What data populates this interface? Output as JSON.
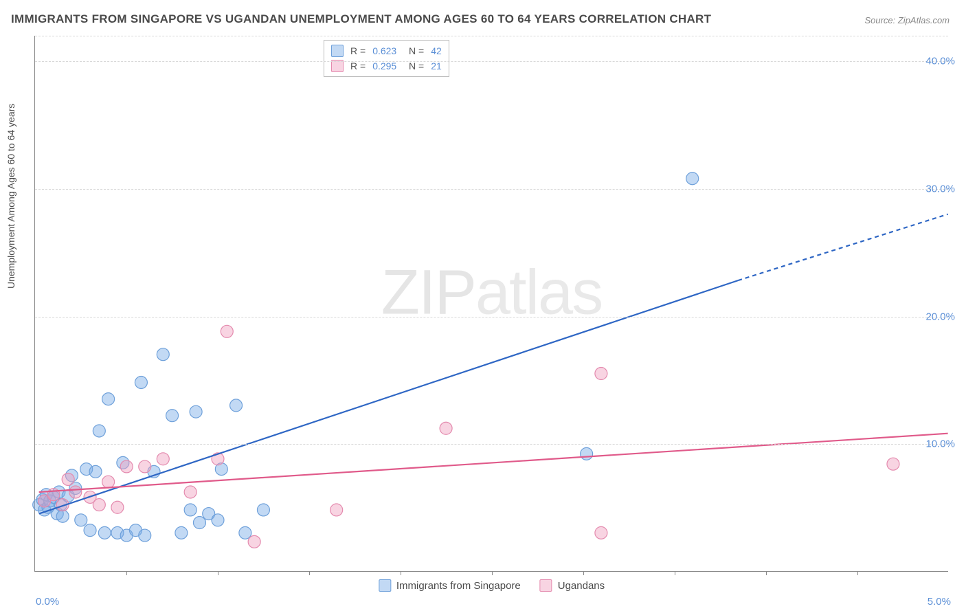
{
  "title": "IMMIGRANTS FROM SINGAPORE VS UGANDAN UNEMPLOYMENT AMONG AGES 60 TO 64 YEARS CORRELATION CHART",
  "source": "Source: ZipAtlas.com",
  "watermark_a": "ZIP",
  "watermark_b": "atlas",
  "y_axis_label": "Unemployment Among Ages 60 to 64 years",
  "chart": {
    "type": "scatter",
    "xlim": [
      0.0,
      5.0
    ],
    "ylim": [
      0.0,
      42.0
    ],
    "x_ticks": [
      "0.0%",
      "5.0%"
    ],
    "y_ticks": [
      {
        "v": 10.0,
        "label": "10.0%"
      },
      {
        "v": 20.0,
        "label": "20.0%"
      },
      {
        "v": 30.0,
        "label": "30.0%"
      },
      {
        "v": 40.0,
        "label": "40.0%"
      }
    ],
    "x_minor_ticks": [
      0.5,
      1.0,
      1.5,
      2.0,
      2.5,
      3.0,
      3.5,
      4.0,
      4.5
    ],
    "background_color": "#ffffff",
    "grid_color": "#d8d8d8",
    "marker_radius": 9,
    "marker_opacity": 0.45,
    "series": [
      {
        "name": "Immigrants from Singapore",
        "color": "#6ea0da",
        "fill": "rgba(120,170,230,0.45)",
        "line_color": "#2e66c4",
        "line_width": 2.2,
        "R": "0.623",
        "N": "42",
        "trend": {
          "x1": 0.02,
          "y1": 4.5,
          "x2": 3.85,
          "y2": 22.8,
          "dash_to_x": 5.0,
          "dash_to_y": 28.0
        },
        "points": [
          [
            0.02,
            5.2
          ],
          [
            0.04,
            5.6
          ],
          [
            0.05,
            4.8
          ],
          [
            0.06,
            6.0
          ],
          [
            0.07,
            5.0
          ],
          [
            0.08,
            5.5
          ],
          [
            0.1,
            5.8
          ],
          [
            0.12,
            4.5
          ],
          [
            0.13,
            6.2
          ],
          [
            0.14,
            5.2
          ],
          [
            0.15,
            4.3
          ],
          [
            0.18,
            5.9
          ],
          [
            0.2,
            7.5
          ],
          [
            0.22,
            6.5
          ],
          [
            0.25,
            4.0
          ],
          [
            0.28,
            8.0
          ],
          [
            0.3,
            3.2
          ],
          [
            0.33,
            7.8
          ],
          [
            0.35,
            11.0
          ],
          [
            0.38,
            3.0
          ],
          [
            0.4,
            13.5
          ],
          [
            0.45,
            3.0
          ],
          [
            0.48,
            8.5
          ],
          [
            0.5,
            2.8
          ],
          [
            0.55,
            3.2
          ],
          [
            0.58,
            14.8
          ],
          [
            0.6,
            2.8
          ],
          [
            0.65,
            7.8
          ],
          [
            0.7,
            17.0
          ],
          [
            0.75,
            12.2
          ],
          [
            0.8,
            3.0
          ],
          [
            0.85,
            4.8
          ],
          [
            0.88,
            12.5
          ],
          [
            0.9,
            3.8
          ],
          [
            0.95,
            4.5
          ],
          [
            1.0,
            4.0
          ],
          [
            1.02,
            8.0
          ],
          [
            1.1,
            13.0
          ],
          [
            1.15,
            3.0
          ],
          [
            1.25,
            4.8
          ],
          [
            3.02,
            9.2
          ],
          [
            3.6,
            30.8
          ]
        ]
      },
      {
        "name": "Ugandans",
        "color": "#e48aae",
        "fill": "rgba(240,160,190,0.45)",
        "line_color": "#e05a8a",
        "line_width": 2.2,
        "R": "0.295",
        "N": "21",
        "trend": {
          "x1": 0.02,
          "y1": 6.2,
          "x2": 5.0,
          "y2": 10.8
        },
        "points": [
          [
            0.05,
            5.5
          ],
          [
            0.1,
            6.0
          ],
          [
            0.15,
            5.2
          ],
          [
            0.18,
            7.2
          ],
          [
            0.22,
            6.2
          ],
          [
            0.3,
            5.8
          ],
          [
            0.35,
            5.2
          ],
          [
            0.4,
            7.0
          ],
          [
            0.45,
            5.0
          ],
          [
            0.5,
            8.2
          ],
          [
            0.6,
            8.2
          ],
          [
            0.7,
            8.8
          ],
          [
            0.85,
            6.2
          ],
          [
            1.0,
            8.8
          ],
          [
            1.05,
            18.8
          ],
          [
            1.2,
            2.3
          ],
          [
            1.65,
            4.8
          ],
          [
            2.25,
            11.2
          ],
          [
            3.1,
            15.5
          ],
          [
            3.1,
            3.0
          ],
          [
            4.7,
            8.4
          ]
        ]
      }
    ]
  },
  "legend_bottom": [
    {
      "swatch": "blue",
      "label": "Immigrants from Singapore"
    },
    {
      "swatch": "pink",
      "label": "Ugandans"
    }
  ]
}
